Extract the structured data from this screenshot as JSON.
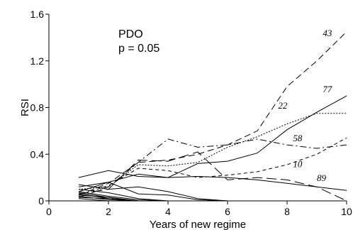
{
  "chart_data": {
    "type": "line",
    "title": "",
    "xlabel": "Years of new regime",
    "ylabel": "RSI",
    "xlim": [
      0,
      10
    ],
    "ylim": [
      0,
      1.6
    ],
    "xticks": [
      0,
      2,
      4,
      6,
      8,
      10
    ],
    "yticks": [
      0,
      0.4,
      0.8,
      1.2,
      1.6
    ],
    "xtick_labels": [
      "0",
      "2",
      "4",
      "6",
      "8",
      "10"
    ],
    "ytick_labels": [
      "0",
      "0.4",
      "0.8",
      "1.2",
      "1.6"
    ],
    "annotation": {
      "line1": "PDO",
      "line2": "p = 0.05"
    },
    "grid": false,
    "series": [
      {
        "name": "43",
        "style": "dashed",
        "label_at": [
          9.2,
          1.41
        ],
        "x": [
          1,
          2,
          3,
          4,
          5,
          6,
          7,
          8,
          9,
          10
        ],
        "y": [
          0.05,
          0.15,
          0.33,
          0.35,
          0.4,
          0.48,
          0.6,
          0.98,
          1.2,
          1.45
        ]
      },
      {
        "name": "77",
        "style": "solid",
        "label_at": [
          9.2,
          0.93
        ],
        "x": [
          1,
          2,
          3,
          4,
          5,
          6,
          7,
          8,
          9,
          10
        ],
        "y": [
          0.08,
          0.16,
          0.23,
          0.2,
          0.32,
          0.34,
          0.41,
          0.61,
          0.76,
          0.9
        ]
      },
      {
        "name": "22",
        "style": "dotted",
        "label_at": [
          7.7,
          0.79
        ],
        "x": [
          1,
          2,
          3,
          4,
          5,
          6,
          7,
          8,
          9,
          10
        ],
        "y": [
          0.1,
          0.12,
          0.31,
          0.3,
          0.33,
          0.46,
          0.55,
          0.66,
          0.75,
          0.75
        ]
      },
      {
        "name": "58",
        "style": "dashdot",
        "label_at": [
          8.2,
          0.51
        ],
        "x": [
          1,
          2,
          3,
          4,
          5,
          6,
          7,
          8,
          9,
          10
        ],
        "y": [
          0.03,
          0.12,
          0.33,
          0.53,
          0.46,
          0.48,
          0.53,
          0.48,
          0.45,
          0.48
        ]
      },
      {
        "name": "10",
        "style": "shortdash",
        "label_at": [
          8.2,
          0.29
        ],
        "x": [
          1,
          2,
          3,
          4,
          5,
          6,
          7,
          8,
          9,
          10
        ],
        "y": [
          0.05,
          0.13,
          0.28,
          0.26,
          0.2,
          0.22,
          0.25,
          0.31,
          0.4,
          0.54
        ]
      },
      {
        "name": "89",
        "style": "longdash",
        "label_at": [
          9.0,
          0.17
        ],
        "x": [
          1,
          2,
          3,
          4,
          5,
          6,
          7,
          8,
          9,
          10
        ],
        "y": [
          0.06,
          0.1,
          0.35,
          0.34,
          0.42,
          0.18,
          0.2,
          0.18,
          0.12,
          0.0
        ]
      },
      {
        "name": "",
        "style": "solid",
        "x": [
          1,
          2,
          3,
          4,
          5,
          6,
          7,
          8,
          9,
          10
        ],
        "y": [
          0.2,
          0.26,
          0.21,
          0.2,
          0.21,
          0.2,
          0.18,
          0.15,
          0.12,
          0.09
        ]
      },
      {
        "name": "",
        "style": "solid",
        "x": [
          1,
          2,
          3,
          4,
          5,
          6
        ],
        "y": [
          0.14,
          0.1,
          0.12,
          0.08,
          0.02,
          0.0
        ]
      },
      {
        "name": "",
        "style": "solid",
        "x": [
          1,
          2,
          3,
          4,
          5,
          6
        ],
        "y": [
          0.12,
          0.16,
          0.06,
          0.05,
          0.01,
          0.0
        ]
      },
      {
        "name": "",
        "style": "solid",
        "x": [
          1,
          2,
          3,
          4
        ],
        "y": [
          0.1,
          0.07,
          0.02,
          0.0
        ]
      },
      {
        "name": "",
        "style": "solid",
        "x": [
          1,
          2,
          3,
          4
        ],
        "y": [
          0.08,
          0.04,
          0.01,
          0.0
        ]
      },
      {
        "name": "",
        "style": "solid",
        "x": [
          1,
          2,
          3
        ],
        "y": [
          0.07,
          0.03,
          0.0
        ]
      },
      {
        "name": "",
        "style": "solid",
        "x": [
          1,
          2,
          3
        ],
        "y": [
          0.06,
          0.02,
          0.0
        ]
      },
      {
        "name": "",
        "style": "solid",
        "x": [
          1,
          2,
          3
        ],
        "y": [
          0.05,
          0.03,
          0.0
        ]
      },
      {
        "name": "",
        "style": "solid",
        "x": [
          1,
          2,
          3
        ],
        "y": [
          0.04,
          0.01,
          0.0
        ]
      },
      {
        "name": "",
        "style": "solid",
        "x": [
          1,
          2,
          3
        ],
        "y": [
          0.03,
          0.02,
          0.0
        ]
      },
      {
        "name": "",
        "style": "solid",
        "x": [
          1,
          2
        ],
        "y": [
          0.02,
          0.0
        ]
      }
    ]
  }
}
